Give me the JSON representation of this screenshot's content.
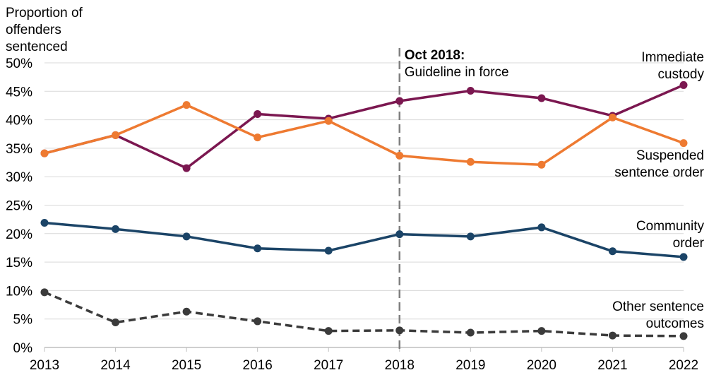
{
  "chart_data": {
    "type": "line",
    "ylabel_lines": [
      "Proportion of",
      "offenders",
      "sentenced"
    ],
    "x": [
      2013,
      2014,
      2015,
      2016,
      2017,
      2018,
      2019,
      2020,
      2021,
      2022
    ],
    "x_tick_labels": [
      "2013",
      "2014",
      "2015",
      "2016",
      "2017",
      "2018",
      "2019",
      "2020",
      "2021",
      "2022"
    ],
    "ylim": [
      0,
      50
    ],
    "y_ticks": [
      0,
      5,
      10,
      15,
      20,
      25,
      30,
      35,
      40,
      45,
      50
    ],
    "y_tick_labels": [
      "0%",
      "5%",
      "10%",
      "15%",
      "20%",
      "25%",
      "30%",
      "35%",
      "40%",
      "45%",
      "50%"
    ],
    "grid": "horizontal",
    "series": [
      {
        "name_lines": [
          "Immediate",
          "custody"
        ],
        "color": "#7b1750",
        "dashed": false,
        "values": [
          34.1,
          37.3,
          31.5,
          41.0,
          40.2,
          43.3,
          45.1,
          43.8,
          40.7,
          46.1
        ]
      },
      {
        "name_lines": [
          "Suspended",
          "sentence order"
        ],
        "color": "#ee7a31",
        "dashed": false,
        "values": [
          34.1,
          37.3,
          42.6,
          36.9,
          39.8,
          33.7,
          32.6,
          32.1,
          40.4,
          35.9
        ]
      },
      {
        "name_lines": [
          "Community",
          "order"
        ],
        "color": "#1b4467",
        "dashed": false,
        "values": [
          21.9,
          20.8,
          19.5,
          17.4,
          17.0,
          19.9,
          19.5,
          21.1,
          16.9,
          15.9
        ]
      },
      {
        "name_lines": [
          "Other sentence",
          "outcomes"
        ],
        "color": "#3b3b3b",
        "dashed": true,
        "values": [
          9.7,
          4.4,
          6.3,
          4.6,
          2.9,
          3.0,
          2.6,
          2.9,
          2.1,
          2.0
        ]
      }
    ],
    "annotation": {
      "x": 2018.0,
      "title": "Oct 2018:",
      "text": "Guideline in force",
      "line_color": "#7f7f7f"
    }
  }
}
